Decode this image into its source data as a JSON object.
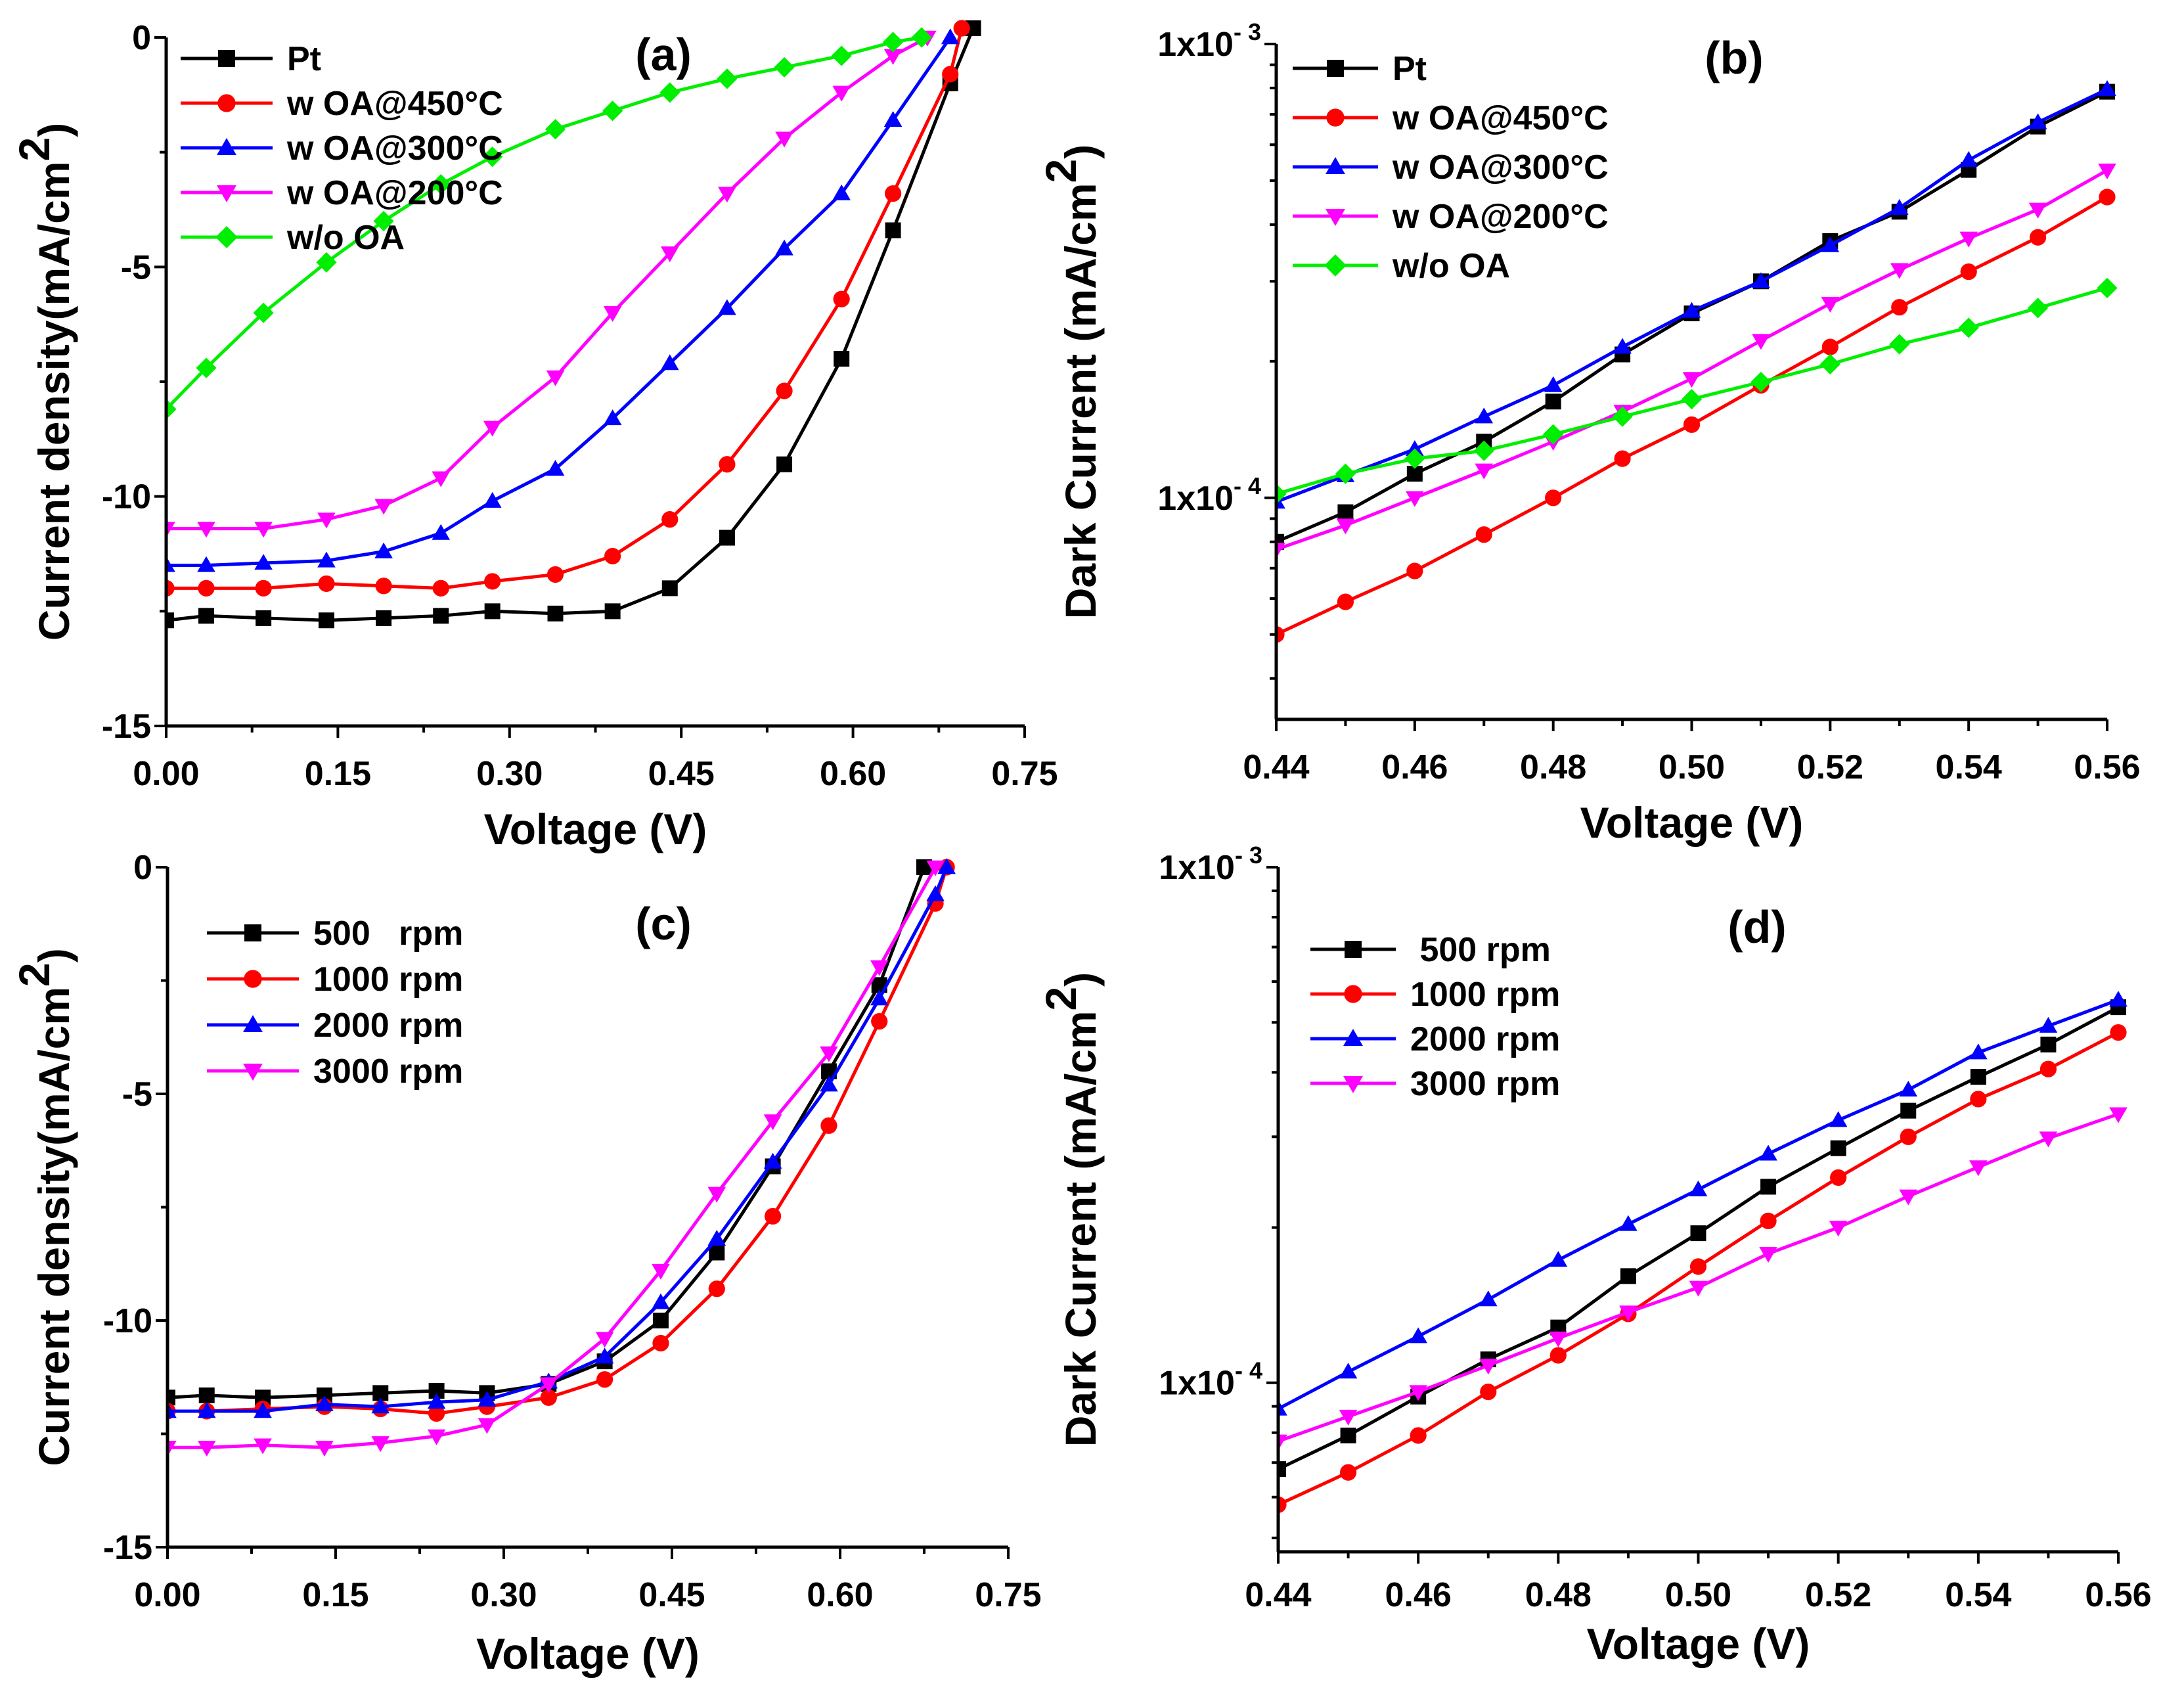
{
  "chart_data": [
    {
      "id": "a",
      "type": "line",
      "panel_label": "(a)",
      "xlabel": "Voltage (V)",
      "ylabel": "Current density(mA/cm",
      "ylabel_sup": "2",
      "ylabel_close": ")",
      "xlim": [
        0,
        0.75
      ],
      "ylim": [
        -15,
        0
      ],
      "yscale": "linear",
      "xticks": [
        0,
        0.15,
        0.3,
        0.45,
        0.6,
        0.75
      ],
      "xtick_labels": [
        "0.00",
        "0.15",
        "0.30",
        "0.45",
        "0.60",
        "0.75"
      ],
      "yticks": [
        0,
        -5,
        -10,
        -15
      ],
      "ytick_labels": [
        "0",
        "-5",
        "-10",
        "-15"
      ],
      "legend_position": "top-left",
      "series": [
        {
          "name": "Pt",
          "color": "#000000",
          "marker": "square",
          "x": [
            0.0,
            0.035,
            0.085,
            0.14,
            0.19,
            0.24,
            0.285,
            0.34,
            0.39,
            0.44,
            0.49,
            0.54,
            0.59,
            0.635,
            0.685,
            0.705
          ],
          "y": [
            -12.7,
            -12.6,
            -12.65,
            -12.7,
            -12.65,
            -12.6,
            -12.5,
            -12.55,
            -12.5,
            -12.0,
            -10.9,
            -9.3,
            -7.0,
            -4.2,
            -1.0,
            0.2
          ]
        },
        {
          "name": "w OA@450°C",
          "color": "#ff0000",
          "marker": "circle",
          "x": [
            0.0,
            0.035,
            0.085,
            0.14,
            0.19,
            0.24,
            0.285,
            0.34,
            0.39,
            0.44,
            0.49,
            0.54,
            0.59,
            0.635,
            0.685,
            0.695
          ],
          "y": [
            -12.0,
            -12.0,
            -12.0,
            -11.9,
            -11.95,
            -12.0,
            -11.85,
            -11.7,
            -11.3,
            -10.5,
            -9.3,
            -7.7,
            -5.7,
            -3.4,
            -0.8,
            0.2
          ]
        },
        {
          "name": "w OA@300°C",
          "color": "#0000ff",
          "marker": "triangle-up",
          "x": [
            0.0,
            0.035,
            0.085,
            0.14,
            0.19,
            0.24,
            0.285,
            0.34,
            0.39,
            0.44,
            0.49,
            0.54,
            0.59,
            0.635,
            0.685
          ],
          "y": [
            -11.5,
            -11.5,
            -11.45,
            -11.4,
            -11.2,
            -10.8,
            -10.1,
            -9.4,
            -8.3,
            -7.1,
            -5.9,
            -4.6,
            -3.4,
            -1.8,
            0.0
          ]
        },
        {
          "name": "w OA@200°C",
          "color": "#ff00ff",
          "marker": "triangle-down",
          "x": [
            0.0,
            0.035,
            0.085,
            0.14,
            0.19,
            0.24,
            0.285,
            0.34,
            0.39,
            0.44,
            0.49,
            0.54,
            0.59,
            0.635,
            0.665
          ],
          "y": [
            -10.7,
            -10.7,
            -10.7,
            -10.5,
            -10.2,
            -9.6,
            -8.5,
            -7.4,
            -6.0,
            -4.7,
            -3.4,
            -2.2,
            -1.2,
            -0.4,
            0.0
          ]
        },
        {
          "name": "w/o OA",
          "color": "#00ee00",
          "marker": "diamond",
          "x": [
            0.0,
            0.035,
            0.085,
            0.14,
            0.19,
            0.24,
            0.285,
            0.34,
            0.39,
            0.44,
            0.49,
            0.54,
            0.59,
            0.635,
            0.66
          ],
          "y": [
            -8.1,
            -7.2,
            -6.0,
            -4.9,
            -4.0,
            -3.2,
            -2.6,
            -2.0,
            -1.6,
            -1.2,
            -0.9,
            -0.65,
            -0.4,
            -0.1,
            0.0
          ]
        }
      ]
    },
    {
      "id": "b",
      "type": "line",
      "panel_label": "(b)",
      "xlabel": "Voltage (V)",
      "ylabel": "Dark Current (mA/cm",
      "ylabel_sup": "2",
      "ylabel_close": ")",
      "xlim": [
        0.44,
        0.56
      ],
      "ylim": [
        3.25e-05,
        0.001
      ],
      "yscale": "log",
      "xticks": [
        0.44,
        0.46,
        0.48,
        0.5,
        0.52,
        0.54,
        0.56
      ],
      "xtick_labels": [
        "0.44",
        "0.46",
        "0.48",
        "0.50",
        "0.52",
        "0.54",
        "0.56"
      ],
      "yticks": [
        0.001,
        0.0001
      ],
      "ytick_labels": [
        {
          "base": "1x10",
          "exp": "- 3"
        },
        {
          "base": "1x10",
          "exp": "- 4"
        }
      ],
      "legend_position": "top-left",
      "series": [
        {
          "name": "Pt",
          "color": "#000000",
          "marker": "square",
          "x": [
            0.44,
            0.45,
            0.46,
            0.47,
            0.48,
            0.49,
            0.5,
            0.51,
            0.52,
            0.53,
            0.54,
            0.55,
            0.56
          ],
          "y": [
            8e-05,
            9.3e-05,
            0.000113,
            0.000133,
            0.000163,
            0.000207,
            0.000255,
            0.0003,
            0.000368,
            0.000427,
            0.000528,
            0.000658,
            0.000785
          ]
        },
        {
          "name": "w OA@450°C",
          "color": "#ff0000",
          "marker": "circle",
          "x": [
            0.44,
            0.45,
            0.46,
            0.47,
            0.48,
            0.49,
            0.5,
            0.51,
            0.52,
            0.53,
            0.54,
            0.55,
            0.56
          ],
          "y": [
            5e-05,
            5.9e-05,
            6.9e-05,
            8.3e-05,
            0.0001,
            0.000122,
            0.000145,
            0.000177,
            0.000215,
            0.000263,
            0.000315,
            0.000375,
            0.00046
          ]
        },
        {
          "name": "w OA@300°C",
          "color": "#0000ff",
          "marker": "triangle-up",
          "x": [
            0.44,
            0.45,
            0.46,
            0.47,
            0.48,
            0.49,
            0.5,
            0.51,
            0.52,
            0.53,
            0.54,
            0.55,
            0.56
          ],
          "y": [
            9.8e-05,
            0.000112,
            0.000128,
            0.000151,
            0.000177,
            0.000215,
            0.000258,
            0.0003,
            0.00036,
            0.000435,
            0.000555,
            0.000672,
            0.000795
          ]
        },
        {
          "name": "w OA@200°C",
          "color": "#ff00ff",
          "marker": "triangle-down",
          "x": [
            0.44,
            0.45,
            0.46,
            0.47,
            0.48,
            0.49,
            0.5,
            0.51,
            0.52,
            0.53,
            0.54,
            0.55,
            0.56
          ],
          "y": [
            7.7e-05,
            8.7e-05,
            0.0001,
            0.000115,
            0.000133,
            0.000155,
            0.000183,
            0.000222,
            0.000268,
            0.000318,
            0.000373,
            0.000432,
            0.000527
          ]
        },
        {
          "name": "w/o OA",
          "color": "#00ee00",
          "marker": "diamond",
          "x": [
            0.44,
            0.45,
            0.46,
            0.47,
            0.48,
            0.49,
            0.5,
            0.51,
            0.52,
            0.53,
            0.54,
            0.55,
            0.56
          ],
          "y": [
            0.000102,
            0.000113,
            0.000122,
            0.000127,
            0.000138,
            0.000151,
            0.000165,
            0.00018,
            0.000197,
            0.000218,
            0.000237,
            0.000262,
            0.00029
          ]
        }
      ]
    },
    {
      "id": "c",
      "type": "line",
      "panel_label": "(c)",
      "xlabel": "Voltage (V)",
      "ylabel": "Current density(mA/cm",
      "ylabel_sup": "2",
      "ylabel_close": ")",
      "xlim": [
        0,
        0.75
      ],
      "ylim": [
        -15,
        0
      ],
      "yscale": "linear",
      "xticks": [
        0,
        0.15,
        0.3,
        0.45,
        0.6,
        0.75
      ],
      "xtick_labels": [
        "0.00",
        "0.15",
        "0.30",
        "0.45",
        "0.60",
        "0.75"
      ],
      "yticks": [
        0,
        -5,
        -10,
        -15
      ],
      "ytick_labels": [
        "0",
        "-5",
        "-10",
        "-15"
      ],
      "legend_position": "top-left",
      "series": [
        {
          "name": "500   rpm",
          "color": "#000000",
          "marker": "square",
          "x": [
            0.0,
            0.035,
            0.085,
            0.14,
            0.19,
            0.24,
            0.285,
            0.34,
            0.39,
            0.44,
            0.49,
            0.54,
            0.59,
            0.635,
            0.675
          ],
          "y": [
            -11.7,
            -11.65,
            -11.7,
            -11.65,
            -11.6,
            -11.55,
            -11.6,
            -11.4,
            -10.9,
            -10.0,
            -8.5,
            -6.6,
            -4.5,
            -2.6,
            0.0
          ]
        },
        {
          "name": "1000 rpm",
          "color": "#ff0000",
          "marker": "circle",
          "x": [
            0.0,
            0.035,
            0.085,
            0.14,
            0.19,
            0.24,
            0.285,
            0.34,
            0.39,
            0.44,
            0.49,
            0.54,
            0.59,
            0.635,
            0.685,
            0.695
          ],
          "y": [
            -12.0,
            -12.0,
            -11.95,
            -11.9,
            -11.95,
            -12.05,
            -11.9,
            -11.7,
            -11.3,
            -10.5,
            -9.3,
            -7.7,
            -5.7,
            -3.4,
            -0.8,
            0.0
          ]
        },
        {
          "name": "2000 rpm",
          "color": "#0000ff",
          "marker": "triangle-up",
          "x": [
            0.0,
            0.035,
            0.085,
            0.14,
            0.19,
            0.24,
            0.285,
            0.34,
            0.39,
            0.44,
            0.49,
            0.54,
            0.59,
            0.635,
            0.685,
            0.695
          ],
          "y": [
            -12.0,
            -12.0,
            -12.0,
            -11.85,
            -11.9,
            -11.8,
            -11.75,
            -11.35,
            -10.8,
            -9.6,
            -8.2,
            -6.5,
            -4.8,
            -2.9,
            -0.6,
            0.0
          ]
        },
        {
          "name": "3000 rpm",
          "color": "#ff00ff",
          "marker": "triangle-down",
          "x": [
            0.0,
            0.035,
            0.085,
            0.14,
            0.19,
            0.24,
            0.285,
            0.34,
            0.39,
            0.44,
            0.49,
            0.54,
            0.59,
            0.635,
            0.685
          ],
          "y": [
            -12.8,
            -12.8,
            -12.75,
            -12.8,
            -12.7,
            -12.55,
            -12.3,
            -11.4,
            -10.4,
            -8.9,
            -7.2,
            -5.6,
            -4.1,
            -2.2,
            0.0
          ]
        }
      ]
    },
    {
      "id": "d",
      "type": "line",
      "panel_label": "(d)",
      "xlabel": "Voltage (V)",
      "ylabel": "Dark Current (mA/cm",
      "ylabel_sup": "2",
      "ylabel_close": ")",
      "xlim": [
        0.44,
        0.56
      ],
      "ylim": [
        4.7e-05,
        0.001
      ],
      "yscale": "log",
      "xticks": [
        0.44,
        0.46,
        0.48,
        0.5,
        0.52,
        0.54,
        0.56
      ],
      "xtick_labels": [
        "0.44",
        "0.46",
        "0.48",
        "0.50",
        "0.52",
        "0.54",
        "0.56"
      ],
      "yticks": [
        0.001,
        0.0001
      ],
      "ytick_labels": [
        {
          "base": "1x10",
          "exp": "- 3"
        },
        {
          "base": "1x10",
          "exp": "- 4"
        }
      ],
      "legend_position": "top-left",
      "series": [
        {
          "name": " 500 rpm",
          "color": "#000000",
          "marker": "square",
          "x": [
            0.44,
            0.45,
            0.46,
            0.47,
            0.48,
            0.49,
            0.5,
            0.51,
            0.52,
            0.53,
            0.54,
            0.55,
            0.56
          ],
          "y": [
            6.8e-05,
            7.9e-05,
            9.4e-05,
            0.000111,
            0.000128,
            0.000161,
            0.000195,
            0.00024,
            0.000285,
            0.000337,
            0.000392,
            0.000453,
            0.000535
          ]
        },
        {
          "name": "1000 rpm",
          "color": "#ff0000",
          "marker": "circle",
          "x": [
            0.44,
            0.45,
            0.46,
            0.47,
            0.48,
            0.49,
            0.5,
            0.51,
            0.52,
            0.53,
            0.54,
            0.55,
            0.56
          ],
          "y": [
            5.8e-05,
            6.7e-05,
            7.9e-05,
            9.6e-05,
            0.000113,
            0.000136,
            0.000168,
            0.000206,
            0.00025,
            0.0003,
            0.000355,
            0.000406,
            0.000478
          ]
        },
        {
          "name": "2000 rpm",
          "color": "#0000ff",
          "marker": "triangle-up",
          "x": [
            0.44,
            0.45,
            0.46,
            0.47,
            0.48,
            0.49,
            0.5,
            0.51,
            0.52,
            0.53,
            0.54,
            0.55,
            0.56
          ],
          "y": [
            8.9e-05,
            0.000105,
            0.000123,
            0.000145,
            0.000173,
            0.000203,
            0.000237,
            0.000278,
            0.000323,
            0.00037,
            0.000437,
            0.000492,
            0.000553
          ]
        },
        {
          "name": "3000 rpm",
          "color": "#ff00ff",
          "marker": "triangle-down",
          "x": [
            0.44,
            0.45,
            0.46,
            0.47,
            0.48,
            0.49,
            0.5,
            0.51,
            0.52,
            0.53,
            0.54,
            0.55,
            0.56
          ],
          "y": [
            7.7e-05,
            8.6e-05,
            9.6e-05,
            0.000108,
            0.000122,
            0.000137,
            0.000153,
            0.000178,
            0.0002,
            0.00023,
            0.000262,
            0.000298,
            0.000332
          ]
        }
      ]
    }
  ]
}
